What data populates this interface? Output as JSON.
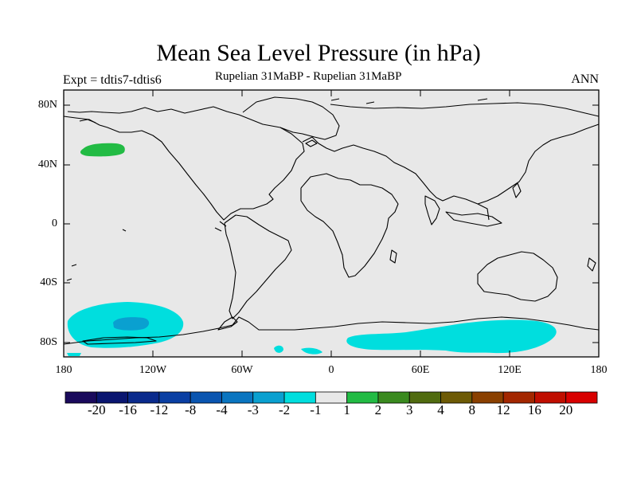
{
  "title": "Mean Sea Level Pressure (in hPa)",
  "left_subtitle": "Expt = tdtis7-tdtis6",
  "center_subtitle": "Rupelian  31MaBP - Rupelian  31MaBP",
  "right_subtitle": "ANN",
  "lat_labels": [
    "80N",
    "40N",
    "0",
    "40S",
    "80S"
  ],
  "lon_labels": [
    "180",
    "120W",
    "60W",
    "0",
    "60E",
    "120E",
    "180"
  ],
  "colorbar": {
    "labels": [
      "-20",
      "-16",
      "-12",
      "-8",
      "-4",
      "-3",
      "-2",
      "-1",
      "1",
      "2",
      "3",
      "4",
      "8",
      "12",
      "16",
      "20"
    ],
    "colors": [
      "#1a0a5c",
      "#0a1670",
      "#0a2a8c",
      "#0a3fa3",
      "#0a55b0",
      "#0a75c0",
      "#0aa0d0",
      "#00dede",
      "#e8e8e8",
      "#22bb44",
      "#3a8a1f",
      "#506b0f",
      "#6d5a05",
      "#8a4000",
      "#a32700",
      "#c00e00",
      "#d80000"
    ]
  },
  "colors": {
    "ocean": "#e8e8e8",
    "negative": "#00dede",
    "negative_core": "#0aa0d0",
    "positive": "#22bb44"
  }
}
